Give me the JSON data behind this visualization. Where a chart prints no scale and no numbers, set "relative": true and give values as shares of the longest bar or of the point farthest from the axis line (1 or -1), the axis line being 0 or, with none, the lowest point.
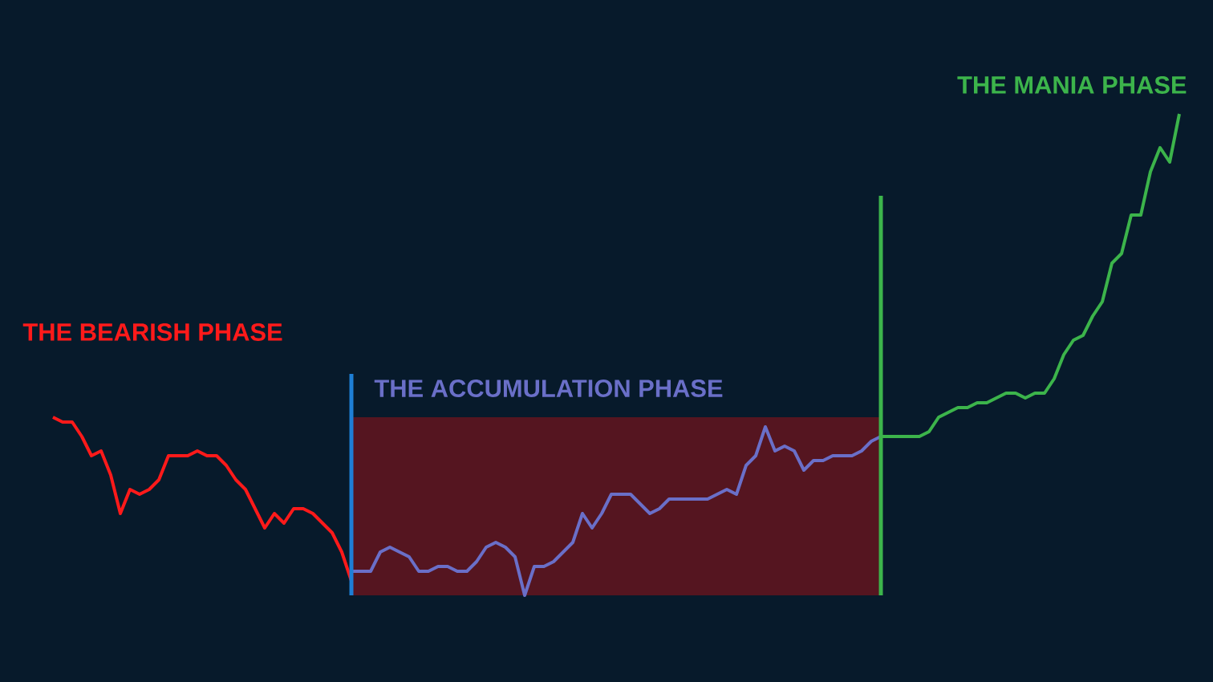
{
  "chart_data": {
    "type": "line",
    "relative": true,
    "categories": [
      null,
      null,
      null,
      null,
      null,
      null,
      null,
      null,
      null,
      null,
      null,
      null,
      null,
      null,
      null,
      null,
      null,
      null,
      null,
      null,
      null,
      null,
      null,
      null,
      null,
      null,
      null,
      null,
      null,
      null,
      null,
      null,
      null,
      null,
      null,
      null,
      null,
      null,
      null,
      null,
      null,
      null,
      null,
      null,
      null,
      null,
      null,
      null,
      null,
      null,
      null,
      null,
      null,
      null,
      null,
      null,
      null,
      null,
      null,
      null,
      null,
      null,
      null,
      null,
      null,
      null,
      null,
      null,
      null,
      null,
      null,
      null,
      null,
      null,
      null,
      null,
      null,
      null,
      null,
      null,
      null,
      null,
      null,
      null,
      null,
      null,
      null,
      null,
      null,
      null,
      null,
      null,
      null,
      null,
      null,
      null,
      null,
      null,
      null,
      null,
      null,
      null,
      null,
      null,
      null,
      null,
      null,
      null,
      null,
      null,
      null,
      null,
      null,
      null,
      null,
      null,
      null,
      null
    ],
    "series": [
      {
        "name": "THE BEARISH PHASE",
        "color": "#ff1a1a",
        "values": [
          0.37,
          0.36,
          0.36,
          0.33,
          0.29,
          0.3,
          0.25,
          0.17,
          0.22,
          0.21,
          0.22,
          0.24,
          0.29,
          0.29,
          0.29,
          0.3,
          0.29,
          0.29,
          0.27,
          0.24,
          0.22,
          0.18,
          0.14,
          0.17,
          0.15,
          0.18,
          0.18,
          0.17,
          0.15,
          0.13,
          0.09,
          0.03,
          null,
          null,
          null,
          null,
          null,
          null,
          null,
          null,
          null,
          null,
          null,
          null,
          null,
          null,
          null,
          null,
          null,
          null,
          null,
          null,
          null,
          null,
          null,
          null,
          null,
          null,
          null,
          null,
          null,
          null,
          null,
          null,
          null,
          null,
          null,
          null,
          null,
          null,
          null,
          null,
          null,
          null,
          null,
          null,
          null,
          null,
          null,
          null,
          null,
          null,
          null,
          null,
          null,
          null,
          null,
          null,
          null,
          null,
          null,
          null,
          null,
          null,
          null,
          null,
          null,
          null,
          null,
          null,
          null,
          null,
          null,
          null,
          null,
          null,
          null,
          null,
          null,
          null,
          null,
          null,
          null,
          null,
          null,
          null,
          null,
          null
        ]
      },
      {
        "name": "THE ACCUMULATION PHASE",
        "color": "#6a6fc8",
        "values": [
          null,
          null,
          null,
          null,
          null,
          null,
          null,
          null,
          null,
          null,
          null,
          null,
          null,
          null,
          null,
          null,
          null,
          null,
          null,
          null,
          null,
          null,
          null,
          null,
          null,
          null,
          null,
          null,
          null,
          null,
          null,
          0.05,
          0.05,
          0.05,
          0.09,
          0.1,
          0.09,
          0.08,
          0.05,
          0.05,
          0.06,
          0.06,
          0.05,
          0.05,
          0.07,
          0.1,
          0.11,
          0.1,
          0.08,
          0.0,
          0.06,
          0.06,
          0.07,
          0.09,
          0.11,
          0.17,
          0.14,
          0.17,
          0.21,
          0.21,
          0.21,
          0.19,
          0.17,
          0.18,
          0.2,
          0.2,
          0.2,
          0.2,
          0.2,
          0.21,
          0.22,
          0.21,
          0.27,
          0.29,
          0.35,
          0.3,
          0.31,
          0.3,
          0.26,
          0.28,
          0.28,
          0.29,
          0.29,
          0.29,
          0.3,
          0.32,
          0.33,
          null,
          null,
          null,
          null,
          null,
          null,
          null,
          null,
          null,
          null,
          null,
          null,
          null,
          null,
          null,
          null,
          null,
          null,
          null,
          null,
          null,
          null,
          null,
          null,
          null,
          null,
          null,
          null,
          null,
          null,
          null
        ]
      },
      {
        "name": "THE MANIA PHASE",
        "color": "#3cb44b",
        "values": [
          null,
          null,
          null,
          null,
          null,
          null,
          null,
          null,
          null,
          null,
          null,
          null,
          null,
          null,
          null,
          null,
          null,
          null,
          null,
          null,
          null,
          null,
          null,
          null,
          null,
          null,
          null,
          null,
          null,
          null,
          null,
          null,
          null,
          null,
          null,
          null,
          null,
          null,
          null,
          null,
          null,
          null,
          null,
          null,
          null,
          null,
          null,
          null,
          null,
          null,
          null,
          null,
          null,
          null,
          null,
          null,
          null,
          null,
          null,
          null,
          null,
          null,
          null,
          null,
          null,
          null,
          null,
          null,
          null,
          null,
          null,
          null,
          null,
          null,
          null,
          null,
          null,
          null,
          null,
          null,
          null,
          null,
          null,
          null,
          null,
          null,
          0.33,
          0.33,
          0.33,
          0.33,
          0.33,
          0.34,
          0.37,
          0.38,
          0.39,
          0.39,
          0.4,
          0.4,
          0.41,
          0.42,
          0.42,
          0.41,
          0.42,
          0.42,
          0.45,
          0.5,
          0.53,
          0.54,
          0.58,
          0.61,
          0.69,
          0.71,
          0.79,
          0.79,
          0.88,
          0.93,
          0.9,
          1.0
        ]
      }
    ]
  }
}
